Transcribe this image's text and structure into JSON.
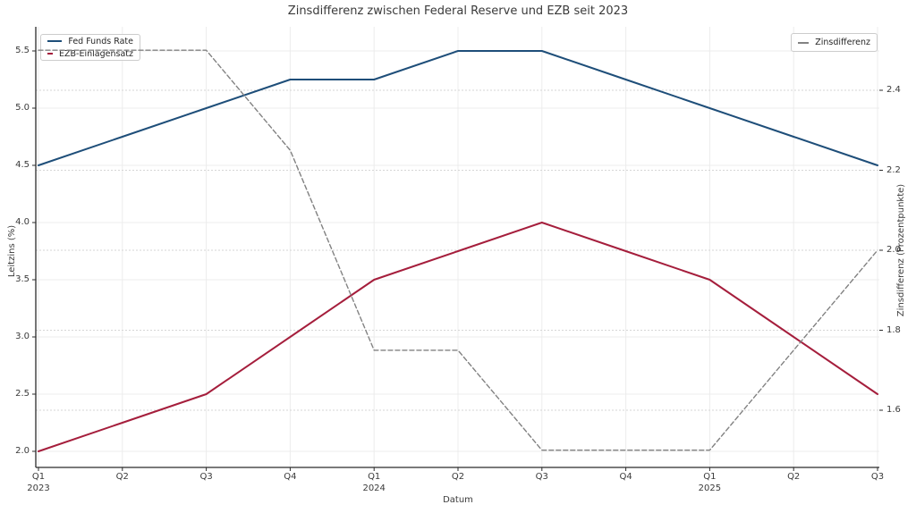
{
  "title": "Zinsdifferenz zwischen Federal Reserve und EZB seit 2023",
  "colors": {
    "fed_line": "#1e4e79",
    "ezb_line": "#a51e3c",
    "diff_line": "#828282",
    "grid_solid": "#ececec",
    "grid_dashed": "#d6d6d6",
    "spine": "#2b2b2b",
    "tick_text": "#3a3a3a"
  },
  "legend_left": {
    "items": [
      {
        "label": "Fed Funds Rate",
        "color": "#1e4e79",
        "style": "solid"
      },
      {
        "label": "EZB-Einlagensatz",
        "color": "#a51e3c",
        "style": "solid"
      }
    ]
  },
  "legend_right": {
    "items": [
      {
        "label": "Zinsdifferenz",
        "color": "#828282",
        "style": "dashed"
      }
    ]
  },
  "chart_data": {
    "type": "line",
    "title": "Zinsdifferenz zwischen Federal Reserve und EZB seit 2023",
    "xlabel": "Datum",
    "ylabel_left": "Leitzins (%)",
    "ylabel_right": "Zinsdifferenz (Prozentpunkte)",
    "categories": [
      "Q1 2023",
      "Q2 2023",
      "Q3 2023",
      "Q4 2023",
      "Q1 2024",
      "Q2 2024",
      "Q3 2024",
      "Q4 2024",
      "Q1 2025",
      "Q2 2025",
      "Q3 2025"
    ],
    "x_tick_labels": [
      {
        "quarter": "Q1",
        "year": "2023"
      },
      {
        "quarter": "Q2",
        "year": ""
      },
      {
        "quarter": "Q3",
        "year": ""
      },
      {
        "quarter": "Q4",
        "year": ""
      },
      {
        "quarter": "Q1",
        "year": "2024"
      },
      {
        "quarter": "Q2",
        "year": ""
      },
      {
        "quarter": "Q3",
        "year": ""
      },
      {
        "quarter": "Q4",
        "year": ""
      },
      {
        "quarter": "Q1",
        "year": "2025"
      },
      {
        "quarter": "Q2",
        "year": ""
      },
      {
        "quarter": "Q3",
        "year": ""
      }
    ],
    "series": [
      {
        "name": "Fed Funds Rate",
        "axis": "left",
        "style": "solid",
        "values": [
          4.5,
          4.75,
          5.0,
          5.25,
          5.25,
          5.5,
          5.5,
          5.25,
          5.0,
          4.75,
          4.5
        ]
      },
      {
        "name": "EZB-Einlagensatz",
        "axis": "left",
        "style": "solid",
        "values": [
          2.0,
          2.25,
          2.5,
          3.0,
          3.5,
          3.75,
          4.0,
          3.75,
          3.5,
          3.0,
          2.5
        ]
      },
      {
        "name": "Zinsdifferenz",
        "axis": "right",
        "style": "dashed",
        "values": [
          2.5,
          2.5,
          2.5,
          2.25,
          1.75,
          1.75,
          1.5,
          1.5,
          1.5,
          1.75,
          2.0
        ]
      }
    ],
    "left_axis": {
      "ticks": [
        2.0,
        2.5,
        3.0,
        3.5,
        4.0,
        4.5,
        5.0,
        5.5
      ],
      "range": [
        1.93,
        5.61
      ]
    },
    "right_axis": {
      "ticks": [
        1.6,
        1.8,
        2.0,
        2.2,
        2.4
      ],
      "range": [
        1.46,
        2.56
      ]
    },
    "grid": true,
    "legend_positions": [
      "upper left",
      "upper right"
    ]
  }
}
